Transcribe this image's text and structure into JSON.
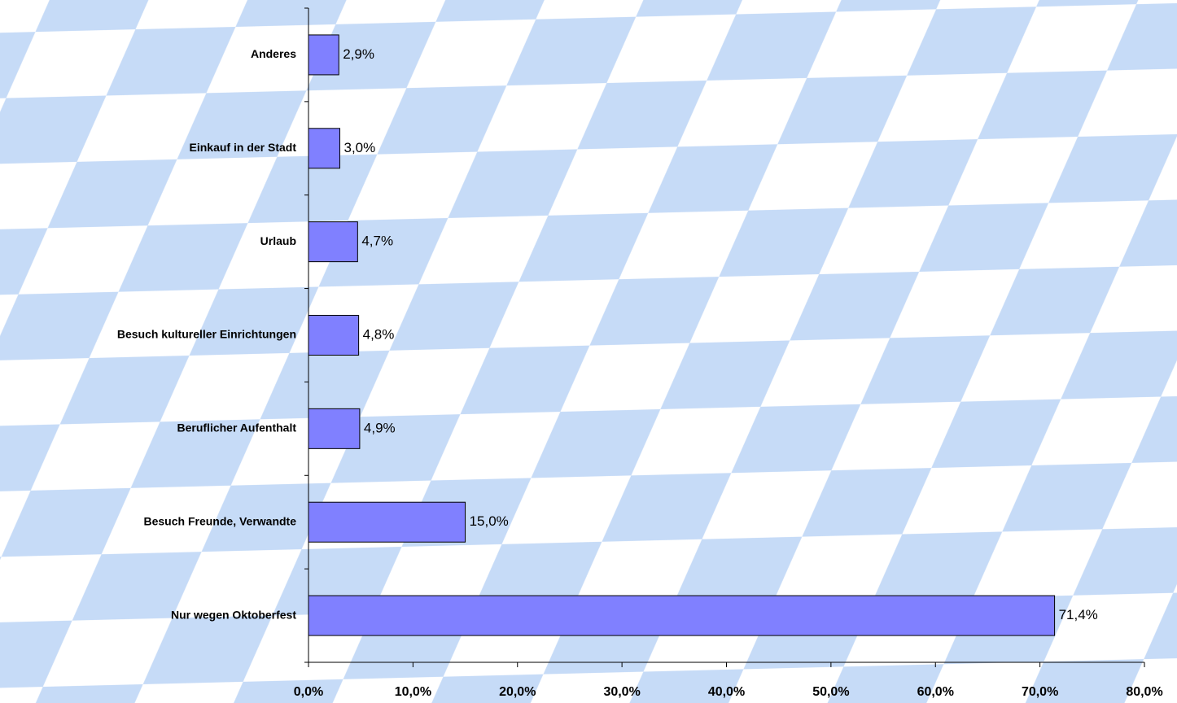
{
  "chart_data": {
    "type": "bar",
    "orientation": "horizontal",
    "categories": [
      "Anderes",
      "Einkauf in der Stadt",
      "Urlaub",
      "Besuch kultureller Einrichtungen",
      "Beruflicher Aufenthalt",
      "Besuch Freunde, Verwandte",
      "Nur wegen Oktoberfest"
    ],
    "values": [
      2.9,
      3.0,
      4.7,
      4.8,
      4.9,
      15.0,
      71.4
    ],
    "value_labels": [
      "2,9%",
      "3,0%",
      "4,7%",
      "4,8%",
      "4,9%",
      "15,0%",
      "71,4%"
    ],
    "color": "#8080ff",
    "xlim": [
      0,
      80
    ],
    "xticks": [
      {
        "value": 0,
        "label": "0,0%"
      },
      {
        "value": 10,
        "label": "10,0%"
      },
      {
        "value": 20,
        "label": "20,0%"
      },
      {
        "value": 30,
        "label": "30,0%"
      },
      {
        "value": 40,
        "label": "40,0%"
      },
      {
        "value": 50,
        "label": "50,0%"
      },
      {
        "value": 60,
        "label": "60,0%"
      },
      {
        "value": 70,
        "label": "70,0%"
      },
      {
        "value": 80,
        "label": "80,0%"
      }
    ],
    "grid": false
  }
}
